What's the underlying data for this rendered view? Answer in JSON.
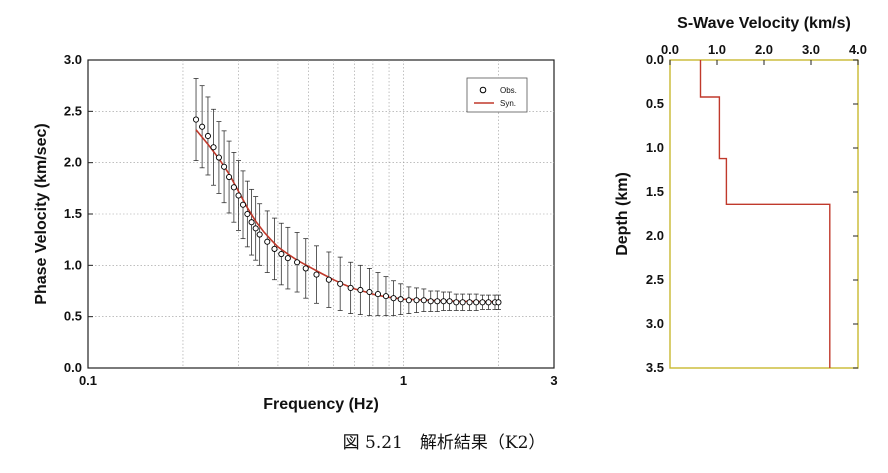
{
  "caption": "図 5.21　解析結果（K2）",
  "chart_data": [
    {
      "type": "scatter",
      "xlabel": "Frequency (Hz)",
      "ylabel": "Phase Velocity (km/sec)",
      "x_scale": "log",
      "xlim": [
        0.1,
        3
      ],
      "ylim": [
        0.0,
        3.0
      ],
      "x_ticks": [
        0.1,
        1,
        3
      ],
      "x_tick_labels": [
        "0.1",
        "1",
        "3"
      ],
      "y_ticks": [
        0.0,
        0.5,
        1.0,
        1.5,
        2.0,
        2.5,
        3.0
      ],
      "y_tick_labels": [
        "0.0",
        "0.5",
        "1.0",
        "1.5",
        "2.0",
        "2.5",
        "3.0"
      ],
      "grid": true,
      "legend": {
        "position": "top-right",
        "entries": [
          {
            "label": "Obs.",
            "marker": "open-circle",
            "color": "#000000"
          },
          {
            "label": "Syn.",
            "marker": "line",
            "color": "#c0392b"
          }
        ]
      },
      "series": [
        {
          "name": "Obs.",
          "x": [
            0.22,
            0.23,
            0.24,
            0.25,
            0.26,
            0.27,
            0.28,
            0.29,
            0.3,
            0.31,
            0.32,
            0.33,
            0.34,
            0.35,
            0.37,
            0.39,
            0.41,
            0.43,
            0.46,
            0.49,
            0.53,
            0.58,
            0.63,
            0.68,
            0.73,
            0.78,
            0.83,
            0.88,
            0.93,
            0.98,
            1.04,
            1.1,
            1.16,
            1.22,
            1.28,
            1.34,
            1.4,
            1.47,
            1.54,
            1.62,
            1.7,
            1.78,
            1.86,
            1.95,
            2.0
          ],
          "y": [
            2.42,
            2.35,
            2.26,
            2.15,
            2.05,
            1.96,
            1.86,
            1.76,
            1.68,
            1.59,
            1.5,
            1.42,
            1.36,
            1.3,
            1.23,
            1.16,
            1.11,
            1.07,
            1.03,
            0.97,
            0.91,
            0.86,
            0.82,
            0.78,
            0.76,
            0.74,
            0.72,
            0.7,
            0.68,
            0.67,
            0.66,
            0.66,
            0.66,
            0.65,
            0.65,
            0.65,
            0.65,
            0.64,
            0.64,
            0.64,
            0.64,
            0.64,
            0.64,
            0.64,
            0.64
          ],
          "err": [
            0.4,
            0.4,
            0.38,
            0.37,
            0.35,
            0.35,
            0.35,
            0.34,
            0.34,
            0.33,
            0.32,
            0.32,
            0.31,
            0.3,
            0.3,
            0.3,
            0.3,
            0.3,
            0.29,
            0.29,
            0.28,
            0.27,
            0.26,
            0.25,
            0.24,
            0.23,
            0.21,
            0.19,
            0.17,
            0.15,
            0.13,
            0.12,
            0.11,
            0.1,
            0.1,
            0.09,
            0.09,
            0.08,
            0.08,
            0.08,
            0.08,
            0.07,
            0.07,
            0.07,
            0.07
          ]
        },
        {
          "name": "Syn.",
          "x": [
            0.22,
            0.24,
            0.26,
            0.28,
            0.3,
            0.32,
            0.34,
            0.36,
            0.38,
            0.4,
            0.43,
            0.46,
            0.5,
            0.55,
            0.6,
            0.65,
            0.7,
            0.76,
            0.82,
            0.9,
            1.0,
            1.1,
            1.2,
            1.35,
            1.5,
            1.7,
            2.0
          ],
          "y": [
            2.32,
            2.18,
            2.04,
            1.89,
            1.72,
            1.56,
            1.43,
            1.33,
            1.25,
            1.18,
            1.11,
            1.05,
            0.99,
            0.92,
            0.86,
            0.81,
            0.77,
            0.74,
            0.71,
            0.69,
            0.67,
            0.665,
            0.66,
            0.655,
            0.65,
            0.648,
            0.645
          ]
        }
      ]
    },
    {
      "type": "line",
      "title": "S-Wave Velocity (km/s)",
      "ylabel": "Depth (km)",
      "xlim": [
        0.0,
        4.0
      ],
      "ylim": [
        0.0,
        3.5
      ],
      "y_inverted": true,
      "x_axis_position": "top",
      "x_ticks": [
        0.0,
        1.0,
        2.0,
        3.0,
        4.0
      ],
      "x_tick_labels": [
        "0.0",
        "1.0",
        "2.0",
        "3.0",
        "4.0"
      ],
      "y_ticks": [
        0.0,
        0.5,
        1.0,
        1.5,
        2.0,
        2.5,
        3.0,
        3.5
      ],
      "y_tick_labels": [
        "0.0",
        "0.5",
        "1.0",
        "1.5",
        "2.0",
        "2.5",
        "3.0",
        "3.5"
      ],
      "grid": false,
      "color": "#c0392b",
      "layers": [
        {
          "vs": 0.65,
          "top": 0.0,
          "bottom": 0.42
        },
        {
          "vs": 1.05,
          "top": 0.42,
          "bottom": 1.12
        },
        {
          "vs": 1.2,
          "top": 1.12,
          "bottom": 1.64
        },
        {
          "vs": 3.4,
          "top": 1.64,
          "bottom": 3.5
        }
      ]
    }
  ]
}
